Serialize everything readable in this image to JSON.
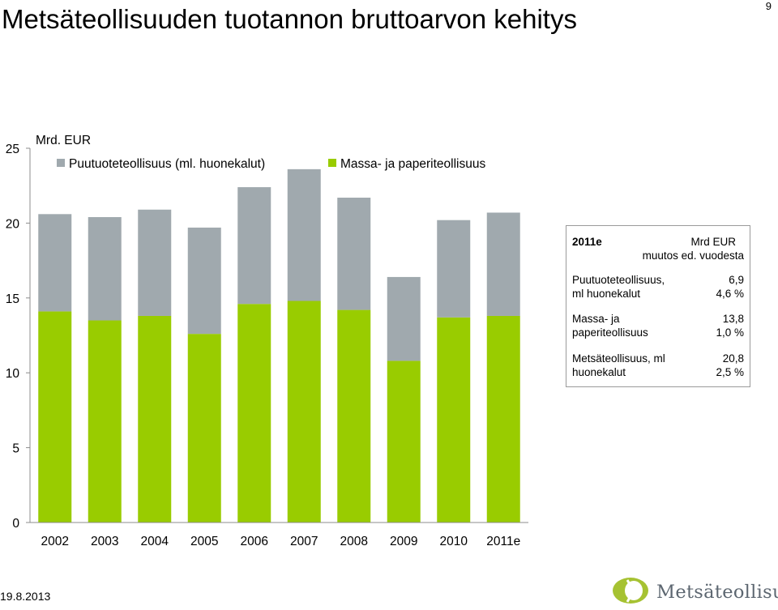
{
  "slide": {
    "title": "Metsäteollisuuden tuotannon bruttoarvon kehitys",
    "page_number": "9",
    "date": "19.8.2013",
    "logo_text": "Metsäteollisuus"
  },
  "colors": {
    "wood": "#a0a9ae",
    "paper": "#99cc00",
    "axis": "#8c8c8c",
    "logo_green": "#a6c232",
    "logo_gray": "#6d7478"
  },
  "chart_data": {
    "type": "bar",
    "stacked": true,
    "unit_label": "Mrd. EUR",
    "categories": [
      "2002",
      "2003",
      "2004",
      "2005",
      "2006",
      "2007",
      "2008",
      "2009",
      "2010",
      "2011e"
    ],
    "series": [
      {
        "name": "Massa- ja paperiteollisuus",
        "color_key": "paper",
        "values": [
          14.1,
          13.5,
          13.8,
          12.6,
          14.6,
          14.8,
          14.2,
          10.8,
          13.7,
          13.8
        ]
      },
      {
        "name": "Puutuoteteollisuus (ml. huonekalut)",
        "color_key": "wood",
        "values": [
          6.5,
          6.9,
          7.1,
          7.1,
          7.8,
          8.8,
          7.5,
          5.6,
          6.5,
          6.9
        ]
      }
    ],
    "legend_order": [
      1,
      0
    ],
    "ylim": [
      0,
      25
    ],
    "yticks": [
      0,
      5,
      10,
      15,
      20,
      25
    ],
    "grid": false,
    "legend_position": "top"
  },
  "info_box": {
    "year": "2011e",
    "unit": "Mrd EUR",
    "change_label": "muutos ed. vuodesta",
    "rows": [
      {
        "name_line1": "Puutuoteteollisuus,",
        "name_line2": "ml huonekalut",
        "value": "6,9",
        "change": "4,6 %"
      },
      {
        "name_line1": "Massa- ja",
        "name_line2": "paperiteollisuus",
        "value": "13,8",
        "change": "1,0 %"
      },
      {
        "name_line1": "Metsäteollisuus, ml",
        "name_line2": "huonekalut",
        "value": "20,8",
        "change": "2,5 %"
      }
    ]
  }
}
